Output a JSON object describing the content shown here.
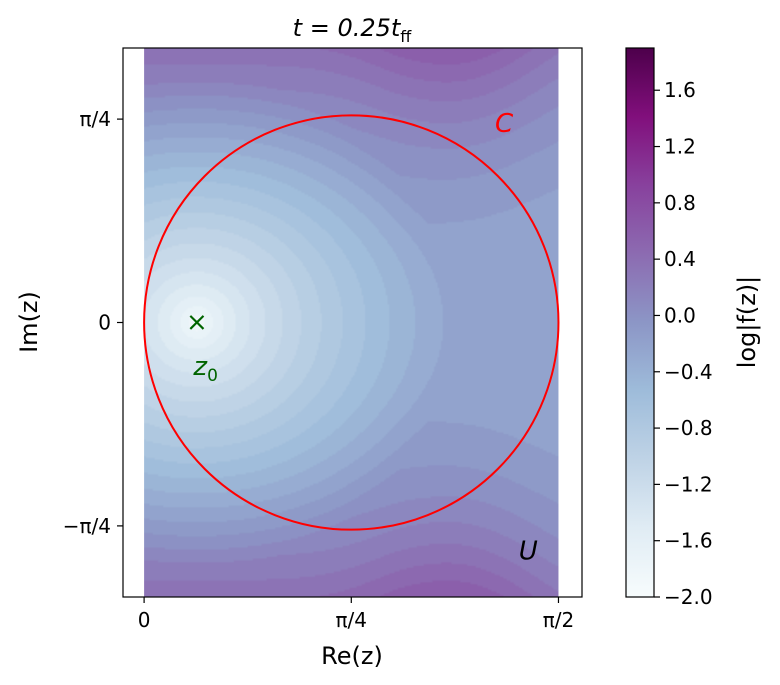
{
  "chart_data": {
    "type": "heatmap",
    "title": "t = 0.25t",
    "title_subscript": "ff",
    "xlabel": "Re(z)",
    "ylabel": "Im(z)",
    "xlim": [
      -0.08,
      1.66
    ],
    "ylim": [
      -1.06,
      1.06
    ],
    "domain": {
      "re": [
        0,
        1.5708
      ],
      "im": [
        -1.06,
        1.06
      ]
    },
    "x_ticks": [
      {
        "value": 0,
        "label": "0"
      },
      {
        "value": 0.7854,
        "label": "π/4"
      },
      {
        "value": 1.5708,
        "label": "π/2"
      }
    ],
    "y_ticks": [
      {
        "value": 0.7854,
        "label": "π/4"
      },
      {
        "value": 0,
        "label": "0"
      },
      {
        "value": -0.7854,
        "label": "−π/4"
      }
    ],
    "colorbar": {
      "label": "log|f(z)|",
      "range": [
        -2.0,
        1.9
      ],
      "ticks": [
        "1.6",
        "1.2",
        "0.8",
        "0.4",
        "0.0",
        "−0.4",
        "−0.8",
        "−1.2",
        "−1.6",
        "−2.0"
      ],
      "tick_values": [
        1.6,
        1.2,
        0.8,
        0.4,
        0.0,
        -0.4,
        -0.8,
        -1.2,
        -1.6,
        -2.0
      ],
      "colormap": "BuPu",
      "colors": [
        "#f7fcfd",
        "#e0ecf4",
        "#bfd3e6",
        "#9ebcda",
        "#8c96c6",
        "#8c6bb1",
        "#88419d",
        "#810f7c",
        "#4d004b"
      ]
    },
    "contour_circle": {
      "label": "C",
      "center_re": 0.7854,
      "center_im": 0,
      "radius": 0.7854,
      "color": "#ff0000"
    },
    "point": {
      "label": "z",
      "label_subscript": "0",
      "re": 0.2,
      "im": 0,
      "marker": "×",
      "color": "#006400"
    },
    "region_label": {
      "label": "U",
      "re": 1.42,
      "im": -0.88,
      "color": "#000000"
    },
    "c_label_pos": {
      "re": 1.33,
      "im": 0.77
    },
    "z0_label_pos": {
      "re": 0.24,
      "im": -0.18
    }
  }
}
